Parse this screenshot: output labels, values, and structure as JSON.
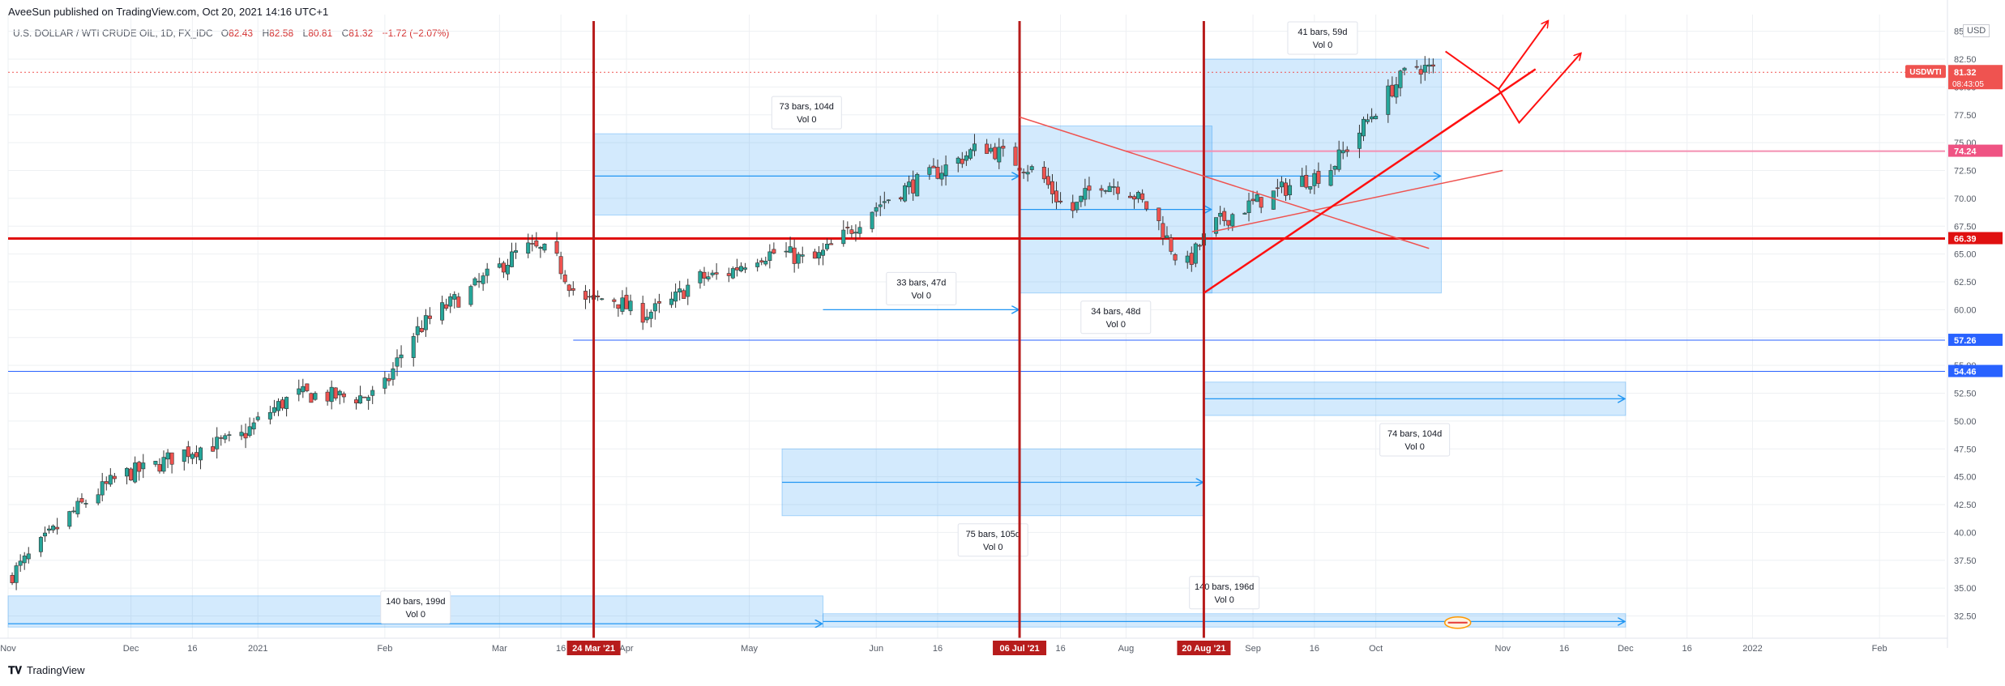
{
  "header": {
    "published": "AveeSun published on TradingView.com, Oct 20, 2021 14:16 UTC+1",
    "symbol": "U.S. DOLLAR / WTI CRUDE OIL, 1D, FX_IDC",
    "ohlc": [
      {
        "label": "O",
        "value": "82.43"
      },
      {
        "label": "H",
        "value": "82.58"
      },
      {
        "label": "L",
        "value": "80.81"
      },
      {
        "label": "C",
        "value": "81.32"
      }
    ],
    "change": "−1.72 (−2.07%)"
  },
  "footer": {
    "brand": "TradingView"
  },
  "currency": "USD",
  "chart_data": {
    "type": "candlestick",
    "symbol": "USDWTI",
    "y_ticks": [
      "32.50",
      "35.00",
      "37.50",
      "40.00",
      "42.50",
      "45.00",
      "47.50",
      "50.00",
      "52.50",
      "55.00",
      "57.50",
      "60.00",
      "62.50",
      "65.00",
      "67.50",
      "70.00",
      "72.50",
      "75.00",
      "77.50",
      "80.00",
      "82.50",
      "85.00"
    ],
    "x_ticks": [
      {
        "label": "Nov",
        "date": "2020-11-01"
      },
      {
        "label": "Dec",
        "date": "2020-12-01"
      },
      {
        "label": "16",
        "date": "2020-12-16"
      },
      {
        "label": "2021",
        "date": "2021-01-01"
      },
      {
        "label": "Feb",
        "date": "2021-02-01"
      },
      {
        "label": "Mar",
        "date": "2021-03-01"
      },
      {
        "label": "16",
        "date": "2021-03-16"
      },
      {
        "label": "Apr",
        "date": "2021-04-01"
      },
      {
        "label": "May",
        "date": "2021-05-01"
      },
      {
        "label": "Jun",
        "date": "2021-06-01"
      },
      {
        "label": "16",
        "date": "2021-06-16"
      },
      {
        "label": "16",
        "date": "2021-07-16"
      },
      {
        "label": "Aug",
        "date": "2021-08-01"
      },
      {
        "label": "Sep",
        "date": "2021-09-01"
      },
      {
        "label": "16",
        "date": "2021-09-16"
      },
      {
        "label": "Oct",
        "date": "2021-10-01"
      },
      {
        "label": "Nov",
        "date": "2021-11-01"
      },
      {
        "label": "16",
        "date": "2021-11-16"
      },
      {
        "label": "Dec",
        "date": "2021-12-01"
      },
      {
        "label": "16",
        "date": "2021-12-16"
      },
      {
        "label": "2022",
        "date": "2022-01-01"
      },
      {
        "label": "Feb",
        "date": "2022-02-01"
      }
    ],
    "ylim": [
      30.5,
      86.5
    ],
    "xlim": [
      "2020-11-01",
      "2022-02-17"
    ],
    "closes": [
      {
        "date": "2020-11-01",
        "close": 35.9
      },
      {
        "date": "2020-11-08",
        "close": 38.5
      },
      {
        "date": "2020-11-15",
        "close": 41.2
      },
      {
        "date": "2020-11-22",
        "close": 43.4
      },
      {
        "date": "2020-11-29",
        "close": 45.2
      },
      {
        "date": "2020-12-06",
        "close": 45.8
      },
      {
        "date": "2020-12-13",
        "close": 47.1
      },
      {
        "date": "2020-12-20",
        "close": 47.8
      },
      {
        "date": "2020-12-27",
        "close": 48.3
      },
      {
        "date": "2021-01-03",
        "close": 50.6
      },
      {
        "date": "2021-01-10",
        "close": 52.4
      },
      {
        "date": "2021-01-17",
        "close": 52.3
      },
      {
        "date": "2021-01-24",
        "close": 52.1
      },
      {
        "date": "2021-01-31",
        "close": 52.4
      },
      {
        "date": "2021-02-07",
        "close": 57.5
      },
      {
        "date": "2021-02-14",
        "close": 59.8
      },
      {
        "date": "2021-02-21",
        "close": 61.5
      },
      {
        "date": "2021-02-28",
        "close": 63.5
      },
      {
        "date": "2021-03-07",
        "close": 65.6
      },
      {
        "date": "2021-03-14",
        "close": 65.0
      },
      {
        "date": "2021-03-21",
        "close": 60.5
      },
      {
        "date": "2021-03-28",
        "close": 61.2
      },
      {
        "date": "2021-04-04",
        "close": 59.5
      },
      {
        "date": "2021-04-11",
        "close": 60.3
      },
      {
        "date": "2021-04-18",
        "close": 62.8
      },
      {
        "date": "2021-04-25",
        "close": 63.1
      },
      {
        "date": "2021-05-02",
        "close": 64.8
      },
      {
        "date": "2021-05-09",
        "close": 65.2
      },
      {
        "date": "2021-05-16",
        "close": 64.2
      },
      {
        "date": "2021-05-23",
        "close": 66.2
      },
      {
        "date": "2021-05-30",
        "close": 68.8
      },
      {
        "date": "2021-06-06",
        "close": 70.5
      },
      {
        "date": "2021-06-13",
        "close": 71.8
      },
      {
        "date": "2021-06-20",
        "close": 73.2
      },
      {
        "date": "2021-06-27",
        "close": 74.8
      },
      {
        "date": "2021-07-04",
        "close": 73.5
      },
      {
        "date": "2021-07-11",
        "close": 72.2
      },
      {
        "date": "2021-07-18",
        "close": 68.5
      },
      {
        "date": "2021-07-25",
        "close": 71.5
      },
      {
        "date": "2021-08-01",
        "close": 71.0
      },
      {
        "date": "2021-08-08",
        "close": 68.5
      },
      {
        "date": "2021-08-15",
        "close": 63.5
      },
      {
        "date": "2021-08-22",
        "close": 67.5
      },
      {
        "date": "2021-08-29",
        "close": 69.0
      },
      {
        "date": "2021-09-05",
        "close": 70.2
      },
      {
        "date": "2021-09-12",
        "close": 71.5
      },
      {
        "date": "2021-09-19",
        "close": 72.3
      },
      {
        "date": "2021-09-26",
        "close": 75.5
      },
      {
        "date": "2021-10-03",
        "close": 79.0
      },
      {
        "date": "2021-10-10",
        "close": 82.0
      },
      {
        "date": "2021-10-17",
        "close": 81.3
      }
    ],
    "price_labels": [
      {
        "text": "USDWTI",
        "value": 81.32,
        "sub": "08:43:05",
        "color": "#ef5350"
      },
      {
        "text": "74.24",
        "value": 74.24,
        "color": "#ef5383"
      },
      {
        "text": "66.39",
        "value": 66.39,
        "color": "#e01010"
      },
      {
        "text": "57.26",
        "value": 57.26,
        "color": "#2962ff"
      },
      {
        "text": "54.46",
        "value": 54.46,
        "color": "#2962ff"
      }
    ],
    "price_label_main": "81.32",
    "horizontal_lines": [
      {
        "value": 66.39,
        "color": "#e01010",
        "width": 3
      },
      {
        "value": 57.26,
        "color": "#2962ff",
        "width": 1,
        "from": "2021-03-19"
      },
      {
        "value": 54.46,
        "color": "#2962ff",
        "width": 1
      },
      {
        "value": 74.24,
        "color": "#f48fb1",
        "width": 2,
        "from": "2021-08-01"
      },
      {
        "value": 81.32,
        "color": "#ef5350",
        "width": 1,
        "dotted": true
      }
    ],
    "vertical_markers": [
      {
        "date": "2021-03-24",
        "label": "24 Mar '21"
      },
      {
        "date": "2021-07-06",
        "label": "06 Jul '21"
      },
      {
        "date": "2021-08-20",
        "label": "20 Aug '21"
      }
    ],
    "ranges": [
      {
        "from": "2021-03-24",
        "to": "2021-07-06",
        "low": 68.5,
        "high": 75.8,
        "arrow_value": 72.0,
        "label": "73 bars, 104d",
        "vol": "Vol 0",
        "label_pos": "above"
      },
      {
        "from": "2021-08-20",
        "to": "2021-10-17",
        "low": 61.5,
        "high": 82.5,
        "arrow_value": 72.0,
        "label": "41 bars, 59d",
        "vol": "Vol 0",
        "label_pos": "above"
      },
      {
        "from": "2021-07-06",
        "to": "2021-08-22",
        "low": 61.5,
        "high": 76.5,
        "arrow_value": 69.0,
        "label": "34 bars, 48d",
        "vol": "Vol 0",
        "label_pos": "below"
      },
      {
        "from": "2021-08-20",
        "to": "2021-12-01",
        "low": 50.5,
        "high": 53.5,
        "arrow_value": 52.0,
        "label": "74 bars, 104d",
        "vol": "Vol 0",
        "label_pos": "below"
      },
      {
        "from": "2021-05-09",
        "to": "2021-08-20",
        "low": 41.5,
        "high": 47.5,
        "arrow_value": 44.5,
        "label": "75 bars, 105d",
        "vol": "Vol 0",
        "label_pos": "below"
      },
      {
        "from": "2020-11-01",
        "to": "2021-05-19",
        "low": 31.5,
        "high": 34.3,
        "arrow_value": 31.8,
        "label": "140 bars, 199d",
        "vol": "Vol 0",
        "label_pos": "mid"
      },
      {
        "from": "2021-05-19",
        "to": "2021-12-01",
        "low": 31.5,
        "high": 32.7,
        "arrow_value": 32.0,
        "label": "140 bars, 196d",
        "vol": "Vol 0",
        "label_pos": "above"
      },
      {
        "from": "2021-05-19",
        "to": "2021-07-06",
        "low": 60.0,
        "high": 60.0,
        "arrow_value": 60.0,
        "label": "33 bars, 47d",
        "vol": "Vol 0",
        "label_pos": "above",
        "line_only": true
      }
    ],
    "trendlines": [
      {
        "from": [
          "2021-07-06",
          77.3
        ],
        "to": [
          "2021-10-14",
          65.5
        ],
        "color": "#ef5350",
        "width": 1.5
      },
      {
        "from": [
          "2021-08-22",
          67.0
        ],
        "to": [
          "2021-11-01",
          72.5
        ],
        "color": "#ef5350",
        "width": 1.5
      },
      {
        "from": [
          "2021-08-20",
          61.5
        ],
        "to": [
          "2021-11-09",
          81.6
        ],
        "color": "#ff1010",
        "width": 2.5
      }
    ],
    "projections": [
      {
        "points": [
          [
            "2021-10-18",
            83.2
          ],
          [
            "2021-10-31",
            79.8
          ],
          [
            "2021-11-12",
            85.9
          ]
        ],
        "arrow": true
      },
      {
        "points": [
          [
            "2021-10-31",
            79.8
          ],
          [
            "2021-11-05",
            76.8
          ],
          [
            "2021-11-20",
            83.0
          ]
        ],
        "arrow": true
      }
    ]
  }
}
